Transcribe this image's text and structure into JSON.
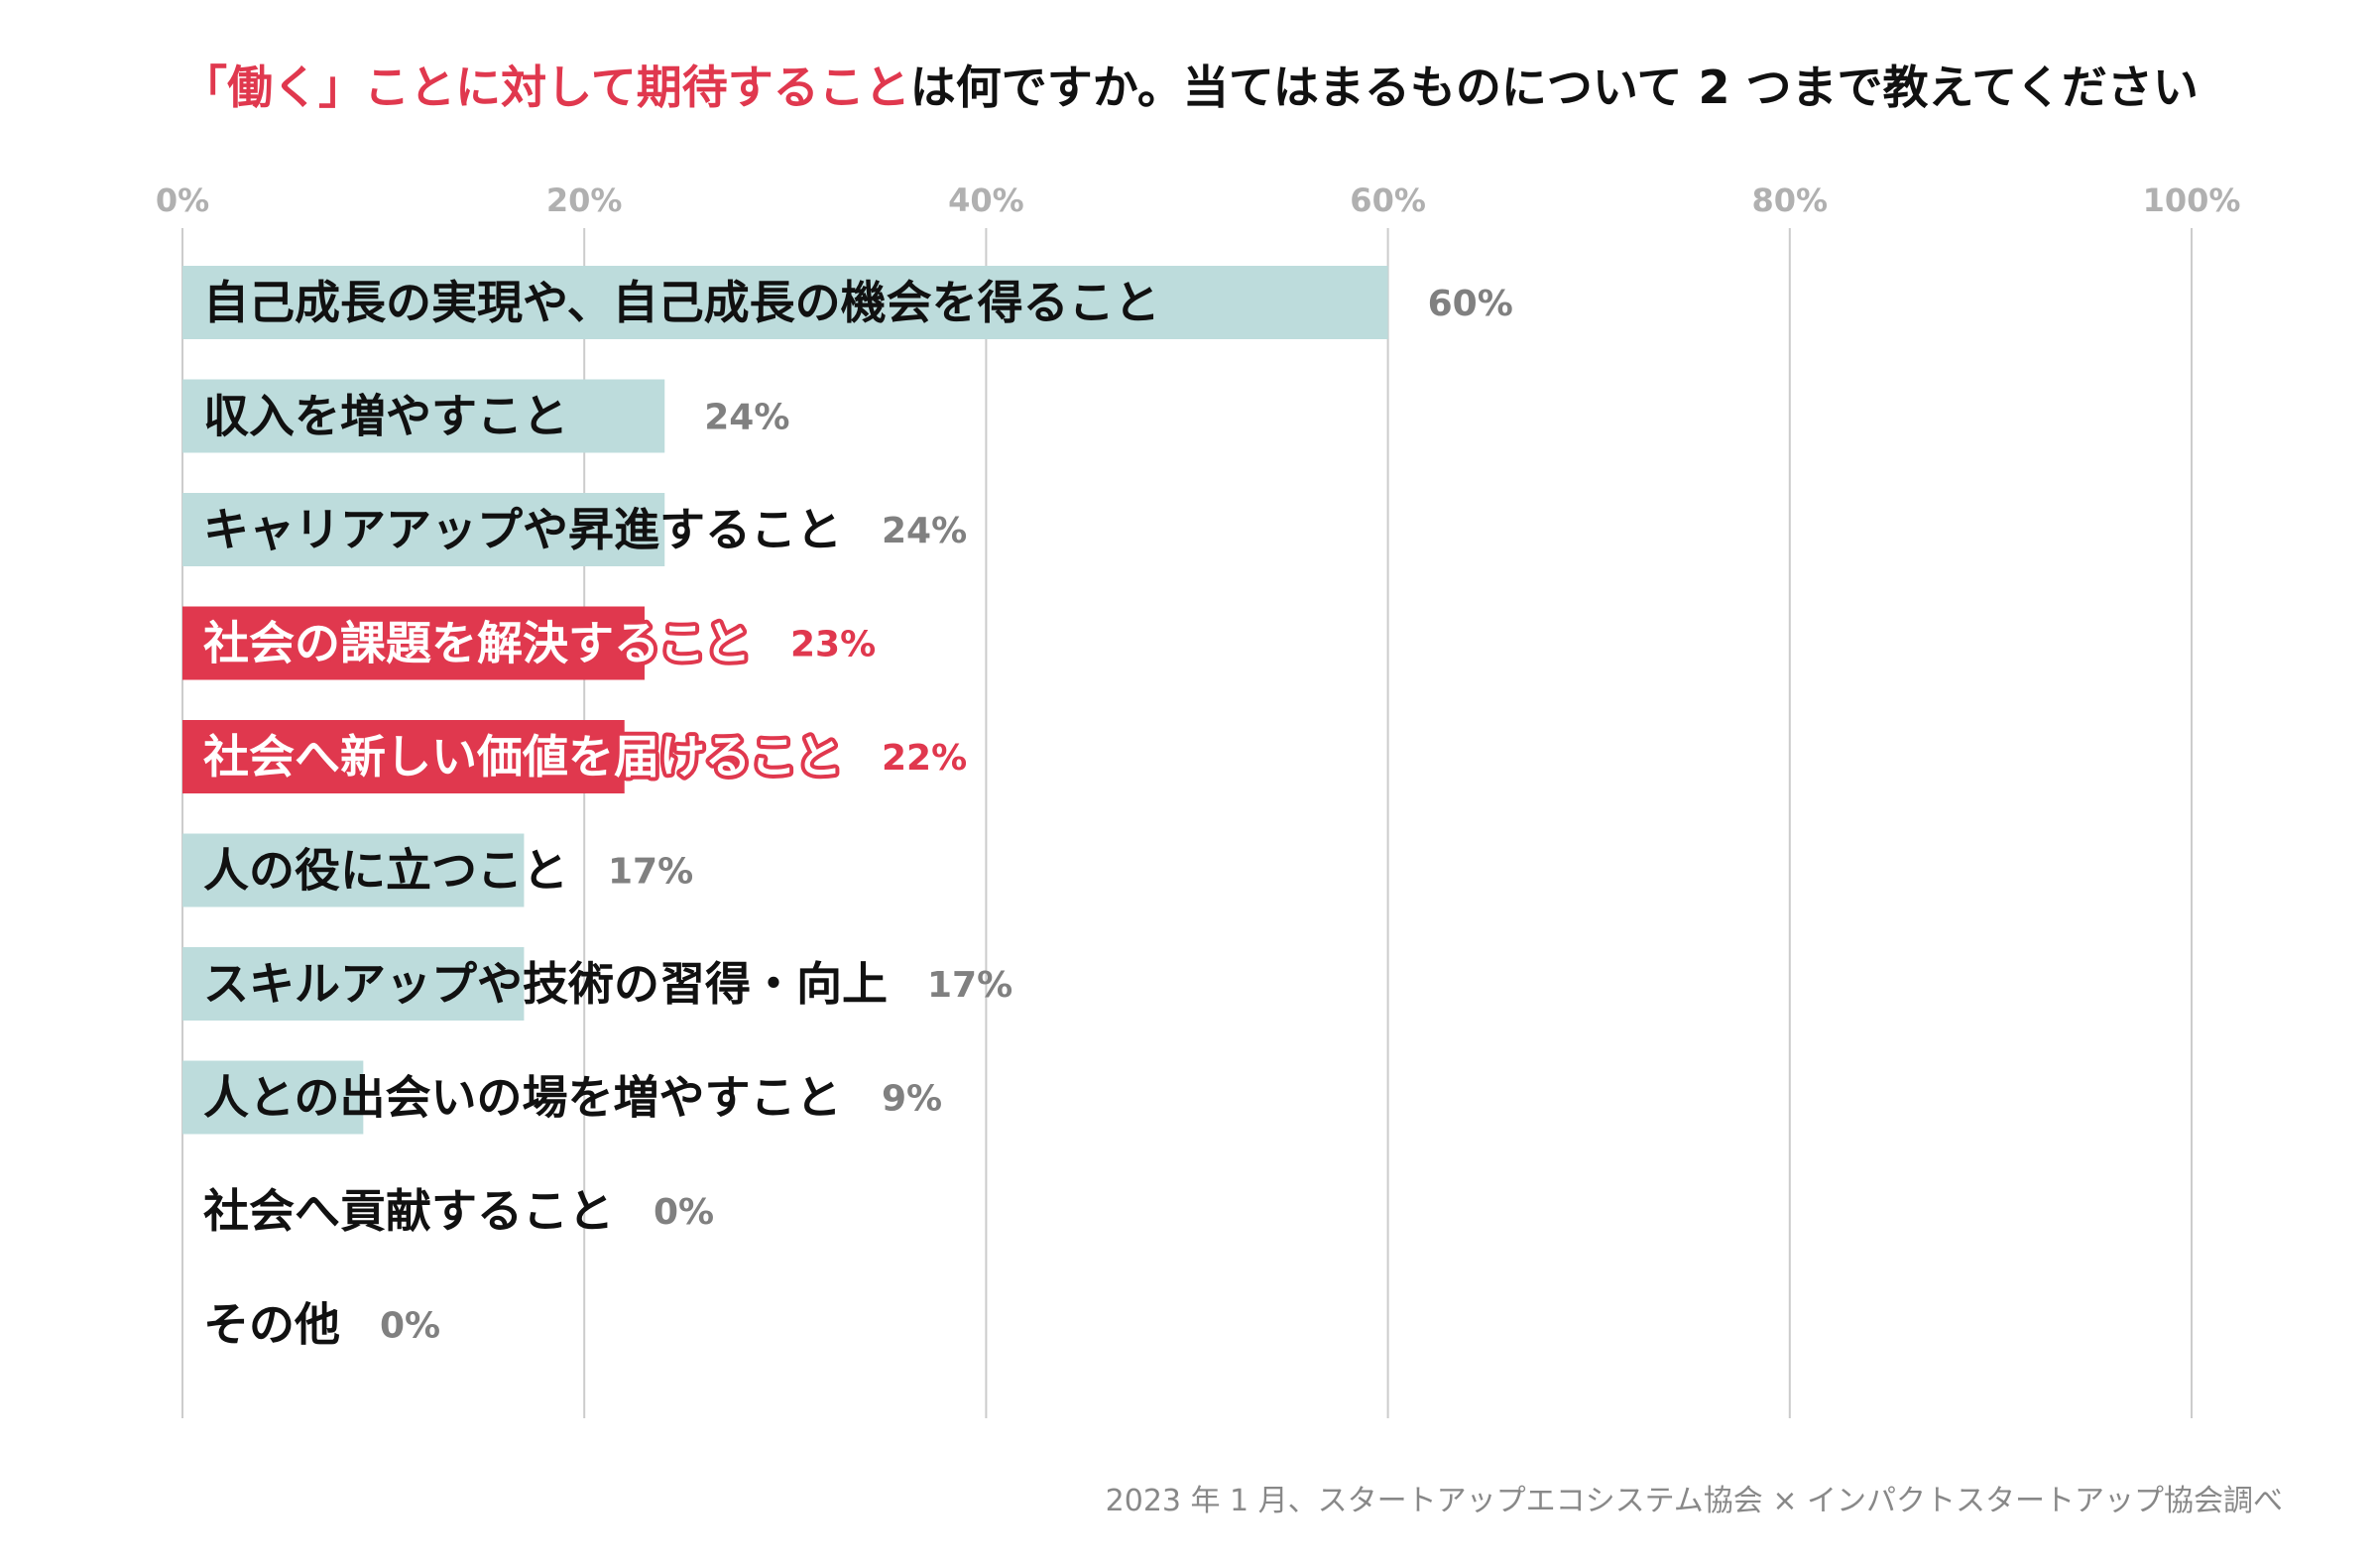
{
  "title": {
    "highlight": "「働く」ことに対して期待すること",
    "rest": "は何ですか。当てはまるものについて 2 つまで教えてください"
  },
  "source": "2023 年 1 月、スタートアップエコシステム協会 × インパクトスタートアップ協会調べ",
  "colors": {
    "accent": "#e0384e",
    "bar": "#bddcdc",
    "grid": "#cccccc",
    "tick": "#b0b0b0",
    "value": "#808080"
  },
  "chart_data": {
    "type": "bar",
    "orientation": "horizontal",
    "categories": [
      "自己成長の実現や、自己成長の機会を得ること",
      "収入を増やすこと",
      "キャリアアップや昇進すること",
      "社会の課題を解決すること",
      "社会へ新しい価値を届けること",
      "人の役に立つこと",
      "スキルアップや技術の習得・向上",
      "人との出会いの場を増やすこと",
      "社会へ貢献すること",
      "その他"
    ],
    "values": [
      60,
      24,
      24,
      23,
      22,
      17,
      17,
      9,
      0,
      0
    ],
    "value_labels": [
      "60%",
      "24%",
      "24%",
      "23%",
      "22%",
      "17%",
      "17%",
      "9%",
      "0%",
      "0%"
    ],
    "highlighted": [
      false,
      false,
      false,
      true,
      true,
      false,
      false,
      false,
      false,
      false
    ],
    "xlim": [
      0,
      100
    ],
    "ticks": [
      0,
      20,
      40,
      60,
      80,
      100
    ],
    "tick_labels": [
      "0%",
      "20%",
      "40%",
      "60%",
      "80%",
      "100%"
    ],
    "grid": true
  }
}
